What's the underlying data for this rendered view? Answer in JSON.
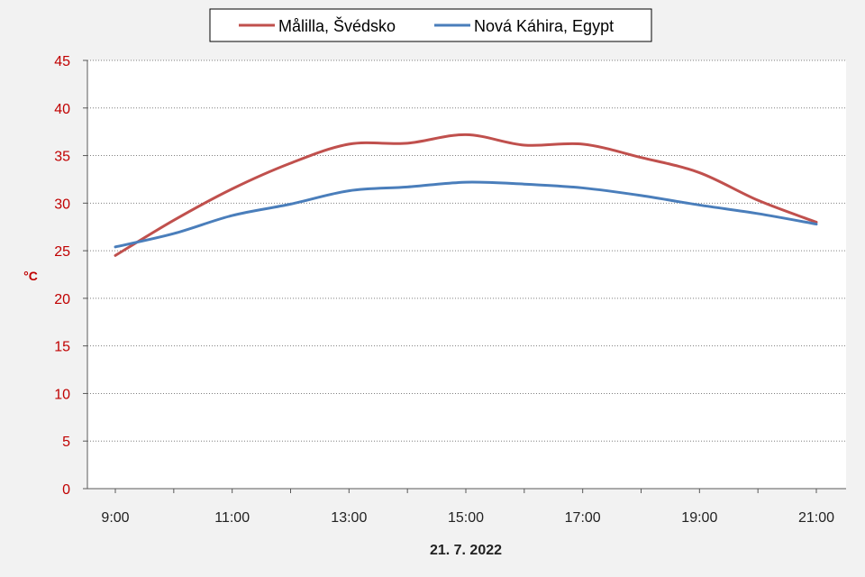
{
  "chart_data": {
    "type": "line",
    "ylabel": "°C",
    "xlabel": "21. 7. 2022",
    "ylim": [
      0,
      45
    ],
    "yticks": [
      0,
      5,
      10,
      15,
      20,
      25,
      30,
      35,
      40,
      45
    ],
    "categories": [
      "9:00",
      "10:00",
      "11:00",
      "12:00",
      "13:00",
      "14:00",
      "15:00",
      "16:00",
      "17:00",
      "18:00",
      "19:00",
      "20:00",
      "21:00"
    ],
    "xtick_labels": [
      "9:00",
      "11:00",
      "13:00",
      "15:00",
      "17:00",
      "19:00",
      "21:00"
    ],
    "grid": true,
    "legend_position": "top-center",
    "series": [
      {
        "name": "Målilla, Švédsko",
        "color": "#c0504d",
        "values": [
          24.5,
          28.2,
          31.5,
          34.2,
          36.2,
          36.3,
          37.2,
          36.1,
          36.2,
          34.8,
          33.2,
          30.3,
          28.0
        ]
      },
      {
        "name": "Nová Káhira, Egypt",
        "color": "#4a7ebb",
        "values": [
          25.4,
          26.8,
          28.7,
          29.9,
          31.3,
          31.7,
          32.2,
          32.0,
          31.6,
          30.8,
          29.8,
          28.9,
          27.8
        ]
      }
    ]
  }
}
